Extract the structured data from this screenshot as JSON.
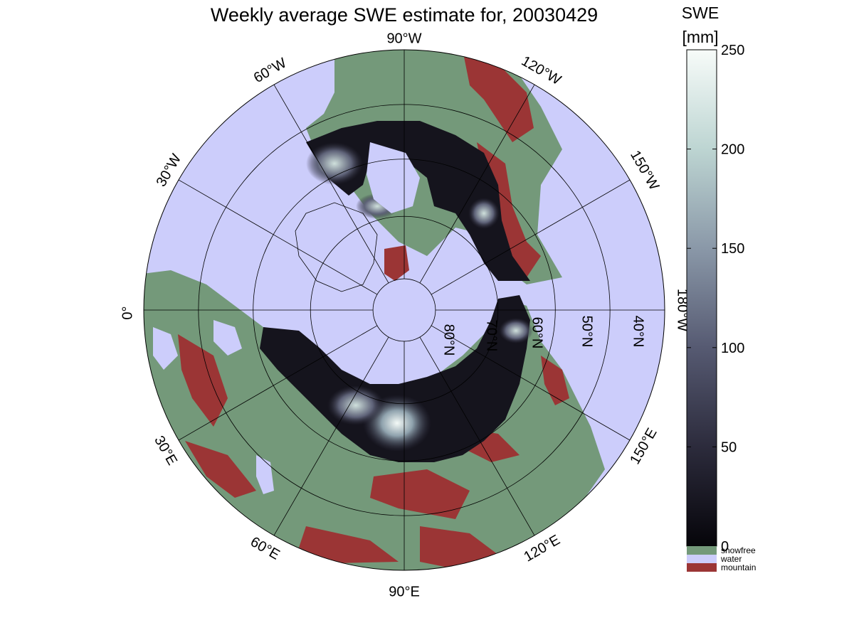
{
  "title": "Weekly average SWE estimate for, 20030429",
  "colorbar": {
    "label_line1": "SWE",
    "label_line2": "[mm]",
    "ticks": [
      "250",
      "200",
      "150",
      "100",
      "50",
      "0"
    ],
    "tick_values": [
      250,
      200,
      150,
      100,
      50,
      0
    ],
    "range": [
      0,
      250
    ],
    "gradient_colors": [
      "#06050a",
      "#2c2b3c",
      "#565a72",
      "#8a98a8",
      "#bdd5d2",
      "#f7fbf9"
    ],
    "categories": [
      {
        "name": "snowfree",
        "color": "#74997a"
      },
      {
        "name": "water",
        "color": "#cccdfb"
      },
      {
        "name": "mountain",
        "color": "#9b3535"
      }
    ]
  },
  "map": {
    "projection": "north-polar-stereographic",
    "colors": {
      "water": "#cccdfb",
      "land": "#74997a",
      "mountain": "#9b3535",
      "snow_dark": "#15141d",
      "snow_light": "#eef5f2",
      "grid": "#000000"
    },
    "longitude_labels": [
      {
        "key": "0",
        "text": "0°"
      },
      {
        "key": "30w",
        "text": "30°W"
      },
      {
        "key": "60w",
        "text": "60°W"
      },
      {
        "key": "90w",
        "text": "90°W"
      },
      {
        "key": "120w",
        "text": "120°W"
      },
      {
        "key": "150w",
        "text": "150°W"
      },
      {
        "key": "180w",
        "text": "180°W"
      },
      {
        "key": "150e",
        "text": "150°E"
      },
      {
        "key": "120e",
        "text": "120°E"
      },
      {
        "key": "90e",
        "text": "90°E"
      },
      {
        "key": "60e",
        "text": "60°E"
      },
      {
        "key": "30e",
        "text": "30°E"
      }
    ],
    "latitude_labels": [
      {
        "key": "80n",
        "text": "80°N"
      },
      {
        "key": "70n",
        "text": "70°N"
      },
      {
        "key": "60n",
        "text": "60°N"
      },
      {
        "key": "50n",
        "text": "50°N"
      },
      {
        "key": "40n",
        "text": "40°N"
      }
    ]
  }
}
